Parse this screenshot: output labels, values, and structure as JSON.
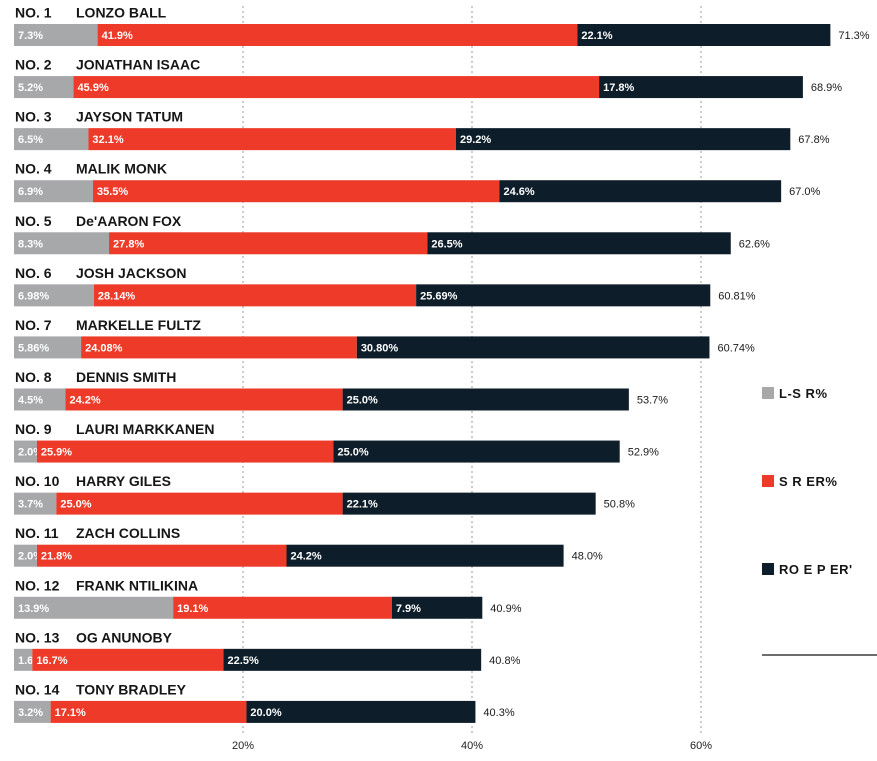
{
  "chart_data": {
    "type": "bar",
    "stacked": true,
    "orientation": "horizontal",
    "xlim": [
      0,
      80
    ],
    "xticks": [
      "20%",
      "40%",
      "60%"
    ],
    "grid": true,
    "colors": {
      "ls": "#a7a8aa",
      "sr": "#ee3a28",
      "ro": "#0d1e2a"
    },
    "legend": [
      "L-S R%",
      "S R ER%",
      "RO E P ER'"
    ],
    "rows": [
      {
        "rank": "NO. 1",
        "name": "LONZO BALL",
        "values": [
          7.3,
          41.9,
          22.1
        ],
        "labels": [
          "7.3%",
          "41.9%",
          "22.1%"
        ],
        "total": "71.3%"
      },
      {
        "rank": "NO. 2",
        "name": "JONATHAN ISAAC",
        "values": [
          5.2,
          45.9,
          17.8
        ],
        "labels": [
          "5.2%",
          "45.9%",
          "17.8%"
        ],
        "total": "68.9%"
      },
      {
        "rank": "NO. 3",
        "name": "JAYSON TATUM",
        "values": [
          6.5,
          32.1,
          29.2
        ],
        "labels": [
          "6.5%",
          "32.1%",
          "29.2%"
        ],
        "total": "67.8%"
      },
      {
        "rank": "NO. 4",
        "name": "MALIK MONK",
        "values": [
          6.9,
          35.5,
          24.6
        ],
        "labels": [
          "6.9%",
          "35.5%",
          "24.6%"
        ],
        "total": "67.0%"
      },
      {
        "rank": "NO. 5",
        "name": "De'AARON FOX",
        "values": [
          8.3,
          27.8,
          26.5
        ],
        "labels": [
          "8.3%",
          "27.8%",
          "26.5%"
        ],
        "total": "62.6%"
      },
      {
        "rank": "NO. 6",
        "name": "JOSH JACKSON",
        "values": [
          6.98,
          28.14,
          25.69
        ],
        "labels": [
          "6.98%",
          "28.14%",
          "25.69%"
        ],
        "total": "60.81%"
      },
      {
        "rank": "NO. 7",
        "name": "MARKELLE FULTZ",
        "values": [
          5.86,
          24.08,
          30.8
        ],
        "labels": [
          "5.86%",
          "24.08%",
          "30.80%"
        ],
        "total": "60.74%"
      },
      {
        "rank": "NO. 8",
        "name": "DENNIS SMITH",
        "values": [
          4.5,
          24.2,
          25.0
        ],
        "labels": [
          "4.5%",
          "24.2%",
          "25.0%"
        ],
        "total": "53.7%"
      },
      {
        "rank": "NO. 9",
        "name": "LAURI MARKKANEN",
        "values": [
          2.0,
          25.9,
          25.0
        ],
        "labels": [
          "2.0%",
          "25.9%",
          "25.0%"
        ],
        "total": "52.9%"
      },
      {
        "rank": "NO. 10",
        "name": "HARRY GILES",
        "values": [
          3.7,
          25.0,
          22.1
        ],
        "labels": [
          "3.7%",
          "25.0%",
          "22.1%"
        ],
        "total": "50.8%"
      },
      {
        "rank": "NO. 11",
        "name": "ZACH COLLINS",
        "values": [
          2.0,
          21.8,
          24.2
        ],
        "labels": [
          "2.0%",
          "21.8%",
          "24.2%"
        ],
        "total": "48.0%"
      },
      {
        "rank": "NO. 12",
        "name": "FRANK NTILIKINA",
        "values": [
          13.9,
          19.1,
          7.9
        ],
        "labels": [
          "13.9%",
          "19.1%",
          "7.9%"
        ],
        "total": "40.9%"
      },
      {
        "rank": "NO. 13",
        "name": "OG ANUNOBY",
        "values": [
          1.6,
          16.7,
          22.5
        ],
        "labels": [
          "1.6%",
          "16.7%",
          "22.5%"
        ],
        "total": "40.8%"
      },
      {
        "rank": "NO. 14",
        "name": "TONY BRADLEY",
        "values": [
          3.2,
          17.1,
          20.0
        ],
        "labels": [
          "3.2%",
          "17.1%",
          "20.0%"
        ],
        "total": "40.3%"
      }
    ]
  }
}
